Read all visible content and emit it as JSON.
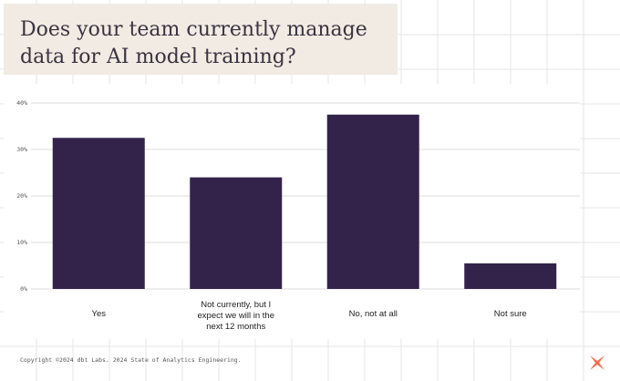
{
  "title": "Does your team currently manage data for AI model training?",
  "footer": "Copyright ©2024 dbt Labs. 2024 State of Analytics Engineering.",
  "logo_icon": "dbt-logo-icon",
  "colors": {
    "bar": "#33234a",
    "title_bg": "#f1ebe3",
    "logo": "#ff694a",
    "grid": "#e6e6e6"
  },
  "chart_data": {
    "type": "bar",
    "categories": [
      "Yes",
      "Not currently, but I expect we will in the next 12 months",
      "No, not at all",
      "Not sure"
    ],
    "category_lines": [
      [
        "Yes"
      ],
      [
        "Not currently, but I",
        "expect we will in the",
        "next 12 months"
      ],
      [
        "No, not at all"
      ],
      [
        "Not sure"
      ]
    ],
    "values": [
      32.5,
      24,
      37.5,
      5.5
    ],
    "ylim": [
      0,
      40
    ],
    "yticks": [
      0,
      10,
      20,
      30,
      40
    ],
    "ytick_labels": [
      "0%",
      "10%",
      "20%",
      "30%",
      "40%"
    ],
    "grid": true,
    "title": "",
    "xlabel": "",
    "ylabel": ""
  }
}
